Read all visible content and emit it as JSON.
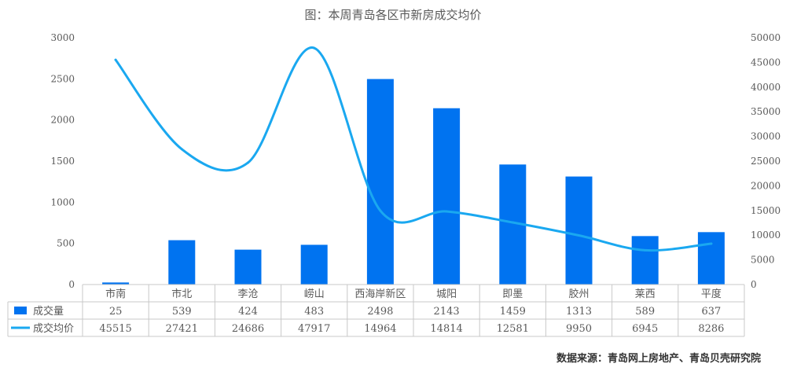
{
  "chart_data": {
    "type": "bar",
    "title": "图：本周青岛各区市新房成交均价",
    "source": "数据来源：青岛网上房地产、青岛贝壳研究院",
    "categories": [
      "市南",
      "市北",
      "李沧",
      "崂山",
      "西海岸新区",
      "城阳",
      "即墨",
      "胶州",
      "莱西",
      "平度"
    ],
    "series": [
      {
        "name": "成交量",
        "type": "bar",
        "axis": "left",
        "color": "#0073f0",
        "values": [
          25,
          539,
          424,
          483,
          2498,
          2143,
          1459,
          1313,
          589,
          637
        ]
      },
      {
        "name": "成交均价",
        "type": "line",
        "axis": "right",
        "color": "#1aa8f0",
        "values": [
          45515,
          27421,
          24686,
          47917,
          14964,
          14814,
          12581,
          9950,
          6945,
          8286
        ]
      }
    ],
    "y_left": {
      "min": 0,
      "max": 3000,
      "ticks": [
        0,
        500,
        1000,
        1500,
        2000,
        2500,
        3000
      ]
    },
    "y_right": {
      "min": 0,
      "max": 50000,
      "ticks": [
        0,
        5000,
        10000,
        15000,
        20000,
        25000,
        30000,
        35000,
        40000,
        45000,
        50000
      ]
    },
    "data_table": true,
    "grid": false
  }
}
